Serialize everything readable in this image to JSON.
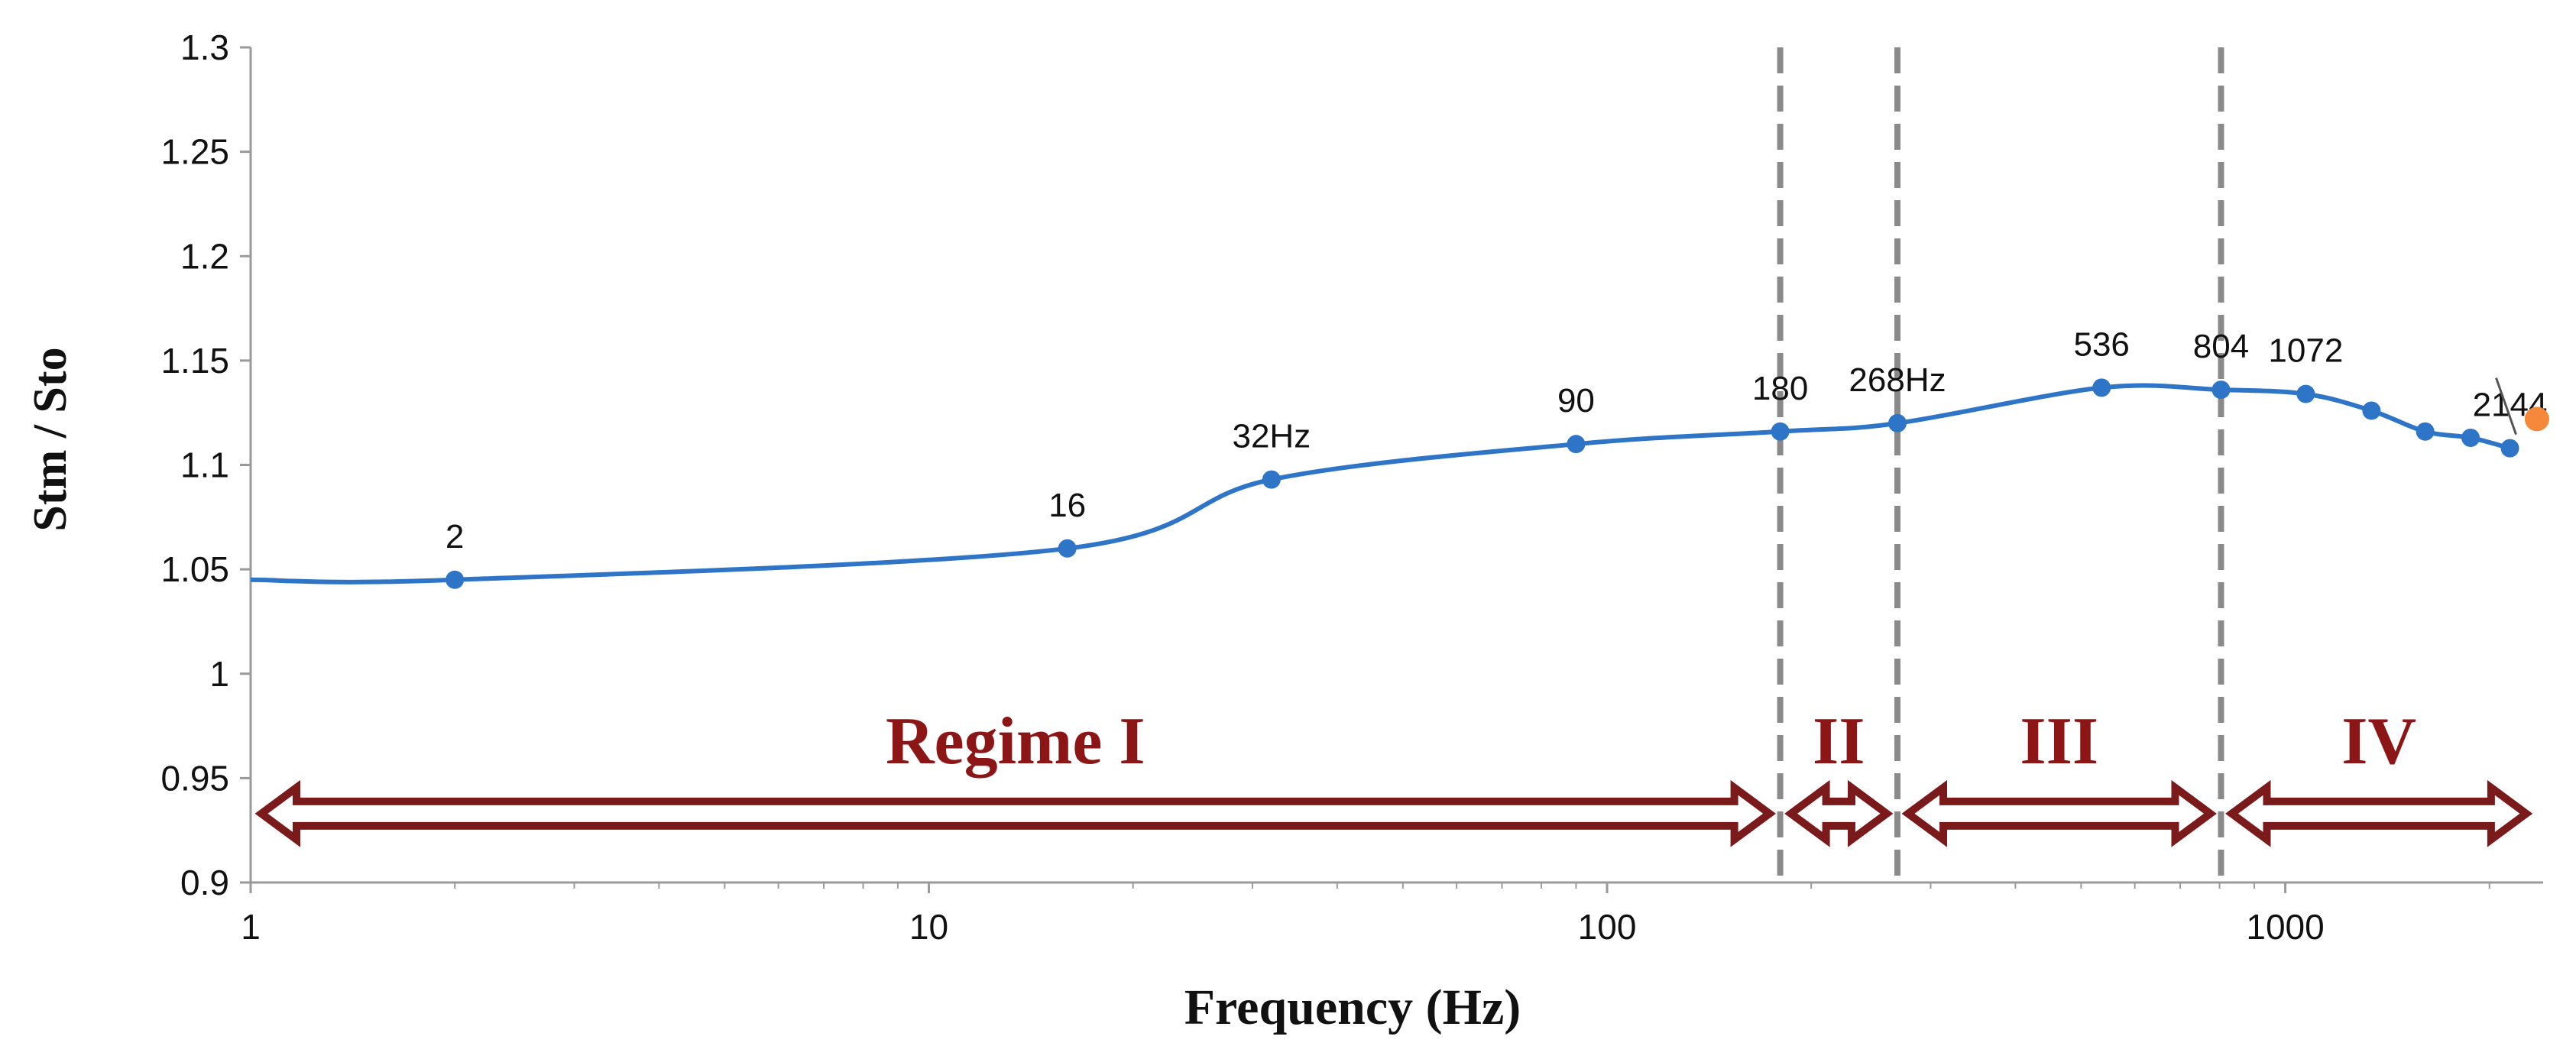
{
  "chart_data": {
    "type": "line",
    "x_scale": "log",
    "xlim": [
      1,
      2400
    ],
    "ylim": [
      0.9,
      1.3
    ],
    "x_ticks": [
      {
        "value": 1,
        "label": "1"
      },
      {
        "value": 10,
        "label": "10"
      },
      {
        "value": 100,
        "label": "100"
      },
      {
        "value": 1000,
        "label": "1000"
      }
    ],
    "y_ticks": [
      {
        "value": 0.9,
        "label": "0.9"
      },
      {
        "value": 0.95,
        "label": "0.95"
      },
      {
        "value": 1.0,
        "label": "1"
      },
      {
        "value": 1.05,
        "label": "1.05"
      },
      {
        "value": 1.1,
        "label": "1.1"
      },
      {
        "value": 1.15,
        "label": "1.15"
      },
      {
        "value": 1.2,
        "label": "1.2"
      },
      {
        "value": 1.25,
        "label": "1.25"
      },
      {
        "value": 1.3,
        "label": "1.3"
      }
    ],
    "xlabel": "Frequency (Hz)",
    "ylabel": "Stm / Sto",
    "grid": false,
    "series": [
      {
        "color": "#2e75c8",
        "points": [
          {
            "x": 1,
            "y": 1.045,
            "marker": false
          },
          {
            "x": 2,
            "y": 1.045,
            "label": "2"
          },
          {
            "x": 16,
            "y": 1.06,
            "label": "16"
          },
          {
            "x": 32,
            "y": 1.093,
            "label": "32Hz"
          },
          {
            "x": 90,
            "y": 1.11,
            "label": "90"
          },
          {
            "x": 180,
            "y": 1.116,
            "label": "180"
          },
          {
            "x": 268,
            "y": 1.12,
            "label": "268Hz"
          },
          {
            "x": 536,
            "y": 1.137,
            "label": "536"
          },
          {
            "x": 804,
            "y": 1.136,
            "label": "804"
          },
          {
            "x": 1072,
            "y": 1.134,
            "label": "1072"
          },
          {
            "x": 1340,
            "y": 1.126
          },
          {
            "x": 1608,
            "y": 1.116
          },
          {
            "x": 1876,
            "y": 1.113
          },
          {
            "x": 2144,
            "y": 1.108,
            "label": "2144"
          }
        ]
      }
    ],
    "highlight_point": {
      "x": 2350,
      "y": 1.122,
      "color": "#f5883a"
    },
    "regime_boundaries": [
      180,
      268,
      804
    ],
    "regimes": [
      {
        "label": "Regime I",
        "from": 1,
        "to": 180
      },
      {
        "label": "II",
        "from": 180,
        "to": 268
      },
      {
        "label": "III",
        "from": 268,
        "to": 804
      },
      {
        "label": "IV",
        "from": 804,
        "to": 2350
      }
    ],
    "regime_color": "#7a1a1a",
    "boundary_color": "#8a8a8a"
  }
}
